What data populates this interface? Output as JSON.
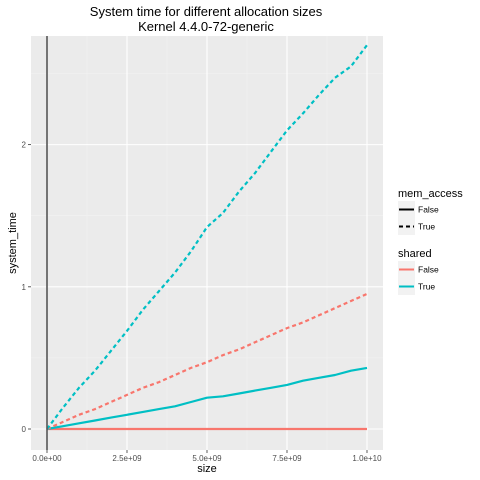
{
  "chart_data": {
    "type": "line",
    "title": "System time for different allocation sizes",
    "subtitle": "Kernel 4.4.0-72-generic",
    "xlabel": "size",
    "ylabel": "system_time",
    "xlim": [
      0,
      10000000000
    ],
    "ylim": [
      0,
      2.75
    ],
    "x_ticks": [
      {
        "value": 0,
        "label": "0.0e+00"
      },
      {
        "value": 2500000000,
        "label": "2.5e+09"
      },
      {
        "value": 5000000000,
        "label": "5.0e+09"
      },
      {
        "value": 7500000000,
        "label": "7.5e+09"
      },
      {
        "value": 10000000000,
        "label": "1.0e+10"
      }
    ],
    "y_ticks": [
      {
        "value": 0,
        "label": "0"
      },
      {
        "value": 1,
        "label": "1"
      },
      {
        "value": 2,
        "label": "2"
      }
    ],
    "grid": true,
    "legend_position": "right",
    "legends": [
      {
        "title": "mem_access",
        "entries": [
          {
            "label": "False",
            "linetype": "solid"
          },
          {
            "label": "True",
            "linetype": "dashed"
          }
        ]
      },
      {
        "title": "shared",
        "entries": [
          {
            "label": "False",
            "color": "#F8766D"
          },
          {
            "label": "True",
            "color": "#00BFC4"
          }
        ]
      }
    ],
    "series": [
      {
        "mem_access": "False",
        "shared": "False",
        "color": "#F8766D",
        "dash": "solid",
        "x": [
          0,
          10000000000
        ],
        "y": [
          0.0,
          0.0
        ]
      },
      {
        "mem_access": "False",
        "shared": "True",
        "color": "#00BFC4",
        "dash": "solid",
        "x": [
          0,
          500000000,
          1000000000,
          1500000000,
          2000000000,
          2500000000,
          3000000000,
          3500000000,
          4000000000,
          4500000000,
          5000000000,
          5500000000,
          6000000000,
          6500000000,
          7000000000,
          7500000000,
          8000000000,
          8500000000,
          9000000000,
          9500000000,
          10000000000
        ],
        "y": [
          0.0,
          0.02,
          0.04,
          0.06,
          0.08,
          0.1,
          0.12,
          0.14,
          0.16,
          0.19,
          0.22,
          0.23,
          0.25,
          0.27,
          0.29,
          0.31,
          0.34,
          0.36,
          0.38,
          0.41,
          0.43
        ]
      },
      {
        "mem_access": "True",
        "shared": "False",
        "color": "#F8766D",
        "dash": "dashed",
        "x": [
          0,
          500000000,
          1000000000,
          1500000000,
          2000000000,
          2500000000,
          3000000000,
          3500000000,
          4000000000,
          4500000000,
          5000000000,
          5500000000,
          6000000000,
          6500000000,
          7000000000,
          7500000000,
          8000000000,
          8500000000,
          9000000000,
          9500000000,
          10000000000
        ],
        "y": [
          0.0,
          0.05,
          0.1,
          0.14,
          0.19,
          0.24,
          0.29,
          0.33,
          0.38,
          0.43,
          0.47,
          0.52,
          0.56,
          0.61,
          0.66,
          0.71,
          0.75,
          0.8,
          0.85,
          0.9,
          0.95
        ]
      },
      {
        "mem_access": "True",
        "shared": "True",
        "color": "#00BFC4",
        "dash": "dashed",
        "x": [
          0,
          500000000,
          1000000000,
          1500000000,
          2000000000,
          2500000000,
          3000000000,
          3500000000,
          4000000000,
          4500000000,
          5000000000,
          5500000000,
          6000000000,
          6500000000,
          7000000000,
          7500000000,
          8000000000,
          8500000000,
          9000000000,
          9500000000,
          10000000000
        ],
        "y": [
          0.0,
          0.15,
          0.29,
          0.41,
          0.55,
          0.69,
          0.84,
          0.97,
          1.1,
          1.25,
          1.42,
          1.52,
          1.67,
          1.8,
          1.95,
          2.1,
          2.22,
          2.35,
          2.47,
          2.55,
          2.7
        ]
      }
    ]
  }
}
